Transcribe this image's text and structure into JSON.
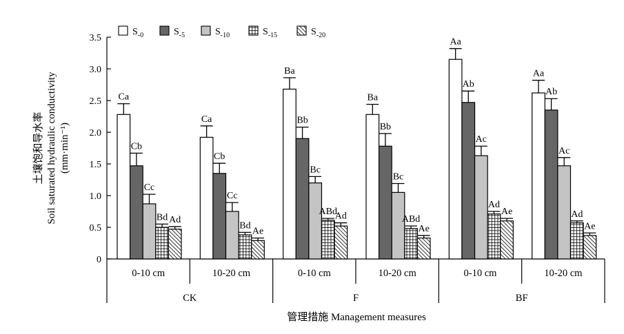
{
  "chart_data": {
    "type": "bar",
    "y_label_cn": "土壤饱和导水率",
    "y_label_en": "Soil saturated hydraulic conductivity",
    "y_unit": "(mm·min⁻¹)",
    "x_label": "管理措施 Management measures",
    "y_range": [
      0,
      3.5
    ],
    "y_ticks": [
      "0",
      "0.5",
      "1.0",
      "1.5",
      "2.0",
      "2.5",
      "3.0",
      "3.5"
    ],
    "legend_placement": "top-left",
    "treatments": [
      "CK",
      "F",
      "BF"
    ],
    "depths": [
      "0-10 cm",
      "10-20 cm",
      "0-10 cm",
      "10-20 cm",
      "0-10 cm",
      "10-20 cm"
    ],
    "series": [
      {
        "name": "S",
        "subscript": "-0",
        "pattern": "white",
        "values": [
          2.28,
          1.92,
          2.68,
          2.28,
          3.15,
          2.62
        ],
        "errors": [
          0.17,
          0.18,
          0.18,
          0.16,
          0.17,
          0.2
        ],
        "labels": [
          "Ca",
          "Ca",
          "Ba",
          "Ba",
          "Aa",
          "Aa"
        ]
      },
      {
        "name": "S",
        "subscript": "-5",
        "pattern": "darkgray",
        "values": [
          1.47,
          1.35,
          1.9,
          1.78,
          2.47,
          2.35
        ],
        "errors": [
          0.2,
          0.16,
          0.18,
          0.2,
          0.18,
          0.18
        ],
        "labels": [
          "Cb",
          "Cb",
          "Bb",
          "Bb",
          "Ab",
          "Ab"
        ]
      },
      {
        "name": "S",
        "subscript": "-10",
        "pattern": "lightgray",
        "values": [
          0.87,
          0.75,
          1.2,
          1.05,
          1.63,
          1.47
        ],
        "errors": [
          0.15,
          0.14,
          0.1,
          0.14,
          0.15,
          0.13
        ],
        "labels": [
          "Cc",
          "Cc",
          "Bc",
          "Bc",
          "Ac",
          "Ac"
        ]
      },
      {
        "name": "S",
        "subscript": "-15",
        "pattern": "grid",
        "values": [
          0.5,
          0.38,
          0.61,
          0.48,
          0.71,
          0.57
        ],
        "errors": [
          0.05,
          0.04,
          0.03,
          0.04,
          0.04,
          0.03
        ],
        "labels": [
          "Bd",
          "Bd",
          "ABd",
          "ABd",
          "Ad",
          "Ad"
        ]
      },
      {
        "name": "S",
        "subscript": "-20",
        "pattern": "hatch",
        "values": [
          0.47,
          0.29,
          0.52,
          0.33,
          0.6,
          0.37
        ],
        "errors": [
          0.04,
          0.04,
          0.05,
          0.04,
          0.04,
          0.04
        ],
        "labels": [
          "Ad",
          "Ae",
          "Ad",
          "Ae",
          "Ae",
          "Ae"
        ]
      }
    ]
  }
}
